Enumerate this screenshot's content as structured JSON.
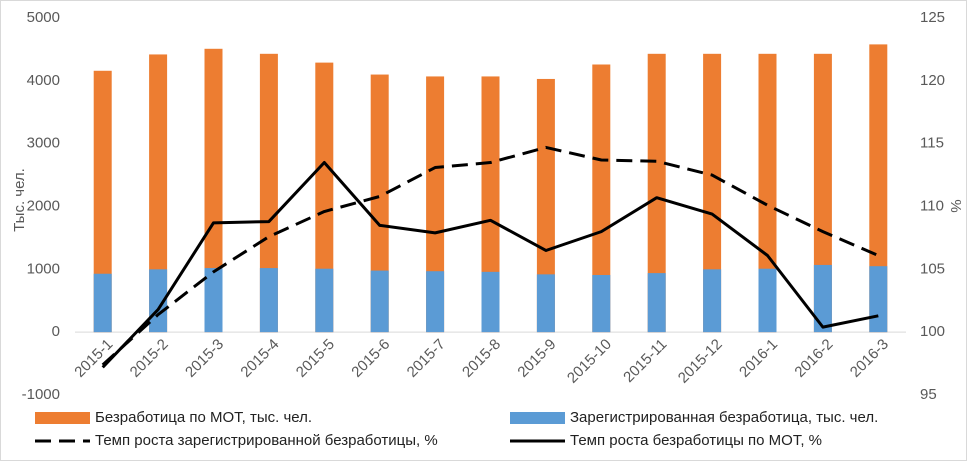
{
  "chart_data": {
    "type": "bar",
    "categories": [
      "2015-1",
      "2015-2",
      "2015-3",
      "2015-4",
      "2015-5",
      "2015-6",
      "2015-7",
      "2015-8",
      "2015-9",
      "2015-10",
      "2015-11",
      "2015-12",
      "2016-1",
      "2016-2",
      "2016-3"
    ],
    "ylabel": "Тыс. чел.",
    "y2label": "%",
    "ylim": [
      -1000,
      5000
    ],
    "yticks": [
      -1000,
      0,
      1000,
      2000,
      3000,
      4000,
      5000
    ],
    "y2lim": [
      95,
      125
    ],
    "y2ticks": [
      95,
      100,
      105,
      110,
      115,
      120,
      125
    ],
    "series": [
      {
        "name": "Безработица по МОТ, тыс. чел.",
        "type": "bar",
        "color": "#ed7d31",
        "values": [
          4160,
          4420,
          4510,
          4430,
          4290,
          4100,
          4070,
          4070,
          4030,
          4260,
          4430,
          4430,
          4430,
          4430,
          4580
        ]
      },
      {
        "name": "Зарегистрированная безработица, тыс. чел.",
        "type": "bar",
        "color": "#5b9bd5",
        "values": [
          930,
          1000,
          1020,
          1020,
          1010,
          980,
          970,
          960,
          920,
          910,
          940,
          1000,
          1010,
          1070,
          1050
        ]
      },
      {
        "name": "Темп роста зарегистрированной безработицы, %",
        "type": "line",
        "axis": "y2",
        "dash": true,
        "color": "#000000",
        "values": [
          97.4,
          101.4,
          104.8,
          107.6,
          109.6,
          110.8,
          113.1,
          113.5,
          114.7,
          113.7,
          113.6,
          112.5,
          110.1,
          108.0,
          106.1
        ]
      },
      {
        "name": "Темп роста безработицы по МОТ, %",
        "type": "line",
        "axis": "y2",
        "dash": false,
        "color": "#000000",
        "values": [
          97.2,
          101.8,
          108.7,
          108.8,
          113.5,
          108.5,
          107.9,
          108.9,
          106.5,
          108.0,
          110.7,
          109.4,
          106.1,
          100.4,
          101.3
        ]
      }
    ]
  }
}
